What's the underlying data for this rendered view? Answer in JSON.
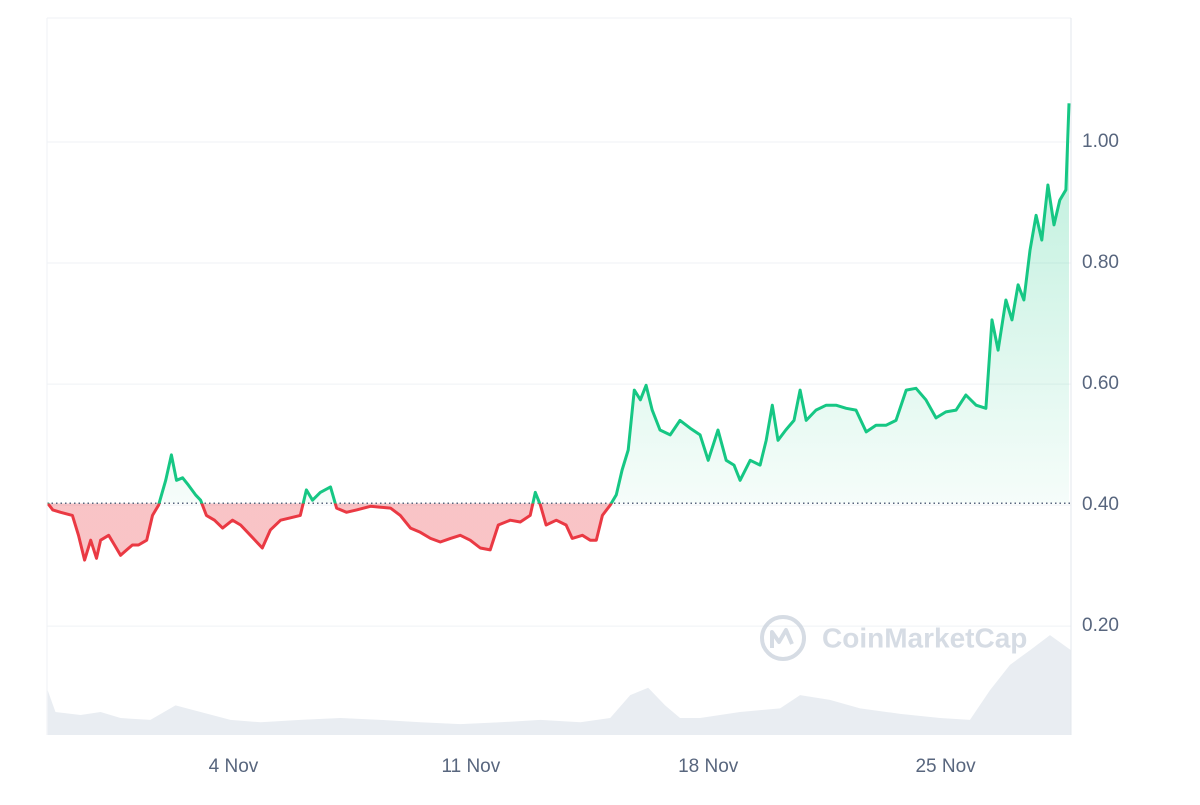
{
  "chart_data": {
    "type": "line",
    "xlim": [
      -1.5,
      28.7
    ],
    "xticks": [
      {
        "value": 4,
        "label": "4 Nov"
      },
      {
        "value": 11,
        "label": "11 Nov"
      },
      {
        "value": 18,
        "label": "18 Nov"
      },
      {
        "value": 25,
        "label": "25 Nov"
      }
    ],
    "ylim": [
      0.02,
      1.205
    ],
    "yticks": [
      {
        "value": 0.2,
        "label": "0.20"
      },
      {
        "value": 0.4,
        "label": "0.40"
      },
      {
        "value": 0.6,
        "label": "0.60"
      },
      {
        "value": 0.8,
        "label": "0.80"
      },
      {
        "value": 1.0,
        "label": "1.00"
      }
    ],
    "grid": true,
    "baseline": 0.403,
    "colors": {
      "above": "#16c784",
      "below": "#ea3943"
    },
    "x": [
      -1.48,
      -1.33,
      -1.1,
      -0.75,
      -0.57,
      -0.39,
      -0.21,
      -0.04,
      0.08,
      0.32,
      0.49,
      0.67,
      0.85,
      1.02,
      1.2,
      1.44,
      1.61,
      1.79,
      2.0,
      2.17,
      2.32,
      2.5,
      2.67,
      2.88,
      3.03,
      3.2,
      3.44,
      3.68,
      3.97,
      4.21,
      4.5,
      4.85,
      5.09,
      5.39,
      5.68,
      5.97,
      6.15,
      6.33,
      6.56,
      6.86,
      7.04,
      7.33,
      7.63,
      8.04,
      8.63,
      8.92,
      9.22,
      9.51,
      9.81,
      10.1,
      10.4,
      10.69,
      10.98,
      11.28,
      11.57,
      11.81,
      12.16,
      12.46,
      12.75,
      12.9,
      13.05,
      13.22,
      13.52,
      13.81,
      13.99,
      14.29,
      14.52,
      14.7,
      14.88,
      15.11,
      15.29,
      15.46,
      15.64,
      15.82,
      16.0,
      16.17,
      16.35,
      16.58,
      16.88,
      17.17,
      17.47,
      17.76,
      18.0,
      18.29,
      18.53,
      18.76,
      18.94,
      19.24,
      19.53,
      19.71,
      19.89,
      20.06,
      20.29,
      20.53,
      20.71,
      20.89,
      21.18,
      21.48,
      21.77,
      22.07,
      22.36,
      22.66,
      22.95,
      23.25,
      23.54,
      23.84,
      24.13,
      24.42,
      24.72,
      25.01,
      25.31,
      25.6,
      25.9,
      26.19,
      26.37,
      26.55,
      26.78,
      26.96,
      27.14,
      27.31,
      27.49,
      27.67,
      27.84,
      28.02,
      28.2,
      28.37,
      28.55,
      28.64
    ],
    "values": [
      0.403,
      0.392,
      0.388,
      0.383,
      0.35,
      0.309,
      0.342,
      0.312,
      0.342,
      0.35,
      0.334,
      0.317,
      0.326,
      0.334,
      0.334,
      0.342,
      0.383,
      0.4,
      0.441,
      0.483,
      0.441,
      0.445,
      0.433,
      0.417,
      0.408,
      0.383,
      0.375,
      0.362,
      0.375,
      0.367,
      0.35,
      0.329,
      0.359,
      0.375,
      0.379,
      0.383,
      0.425,
      0.408,
      0.421,
      0.43,
      0.395,
      0.388,
      0.392,
      0.398,
      0.395,
      0.383,
      0.362,
      0.355,
      0.345,
      0.339,
      0.345,
      0.35,
      0.342,
      0.329,
      0.326,
      0.367,
      0.375,
      0.372,
      0.383,
      0.421,
      0.4,
      0.367,
      0.375,
      0.367,
      0.345,
      0.35,
      0.342,
      0.342,
      0.383,
      0.4,
      0.417,
      0.458,
      0.491,
      0.59,
      0.574,
      0.598,
      0.557,
      0.524,
      0.516,
      0.54,
      0.527,
      0.516,
      0.474,
      0.524,
      0.474,
      0.466,
      0.441,
      0.474,
      0.466,
      0.507,
      0.565,
      0.507,
      0.524,
      0.54,
      0.59,
      0.54,
      0.557,
      0.565,
      0.565,
      0.56,
      0.557,
      0.521,
      0.532,
      0.532,
      0.54,
      0.59,
      0.593,
      0.574,
      0.544,
      0.554,
      0.557,
      0.582,
      0.565,
      0.56,
      0.706,
      0.656,
      0.739,
      0.706,
      0.764,
      0.739,
      0.821,
      0.879,
      0.838,
      0.929,
      0.863,
      0.904,
      0.921,
      1.064
    ],
    "volume": {
      "color": "#e9edf2",
      "x": [
        -1.48,
        -1.25,
        -0.51,
        0.08,
        0.67,
        1.55,
        2.29,
        3.03,
        3.91,
        4.8,
        5.97,
        7.15,
        8.33,
        9.51,
        10.69,
        11.87,
        13.05,
        14.23,
        15.11,
        15.7,
        16.23,
        16.73,
        17.17,
        17.76,
        18.94,
        20.12,
        20.71,
        21.59,
        22.48,
        23.66,
        24.84,
        25.72,
        26.31,
        26.9,
        27.49,
        28.08,
        28.7
      ],
      "values": [
        0.094,
        0.058,
        0.053,
        0.058,
        0.048,
        0.045,
        0.069,
        0.058,
        0.045,
        0.041,
        0.045,
        0.048,
        0.045,
        0.041,
        0.038,
        0.041,
        0.045,
        0.041,
        0.048,
        0.086,
        0.098,
        0.069,
        0.048,
        0.048,
        0.058,
        0.064,
        0.086,
        0.078,
        0.064,
        0.055,
        0.048,
        0.045,
        0.094,
        0.136,
        0.16,
        0.185,
        0.16
      ]
    },
    "watermark": "CoinMarketCap"
  }
}
